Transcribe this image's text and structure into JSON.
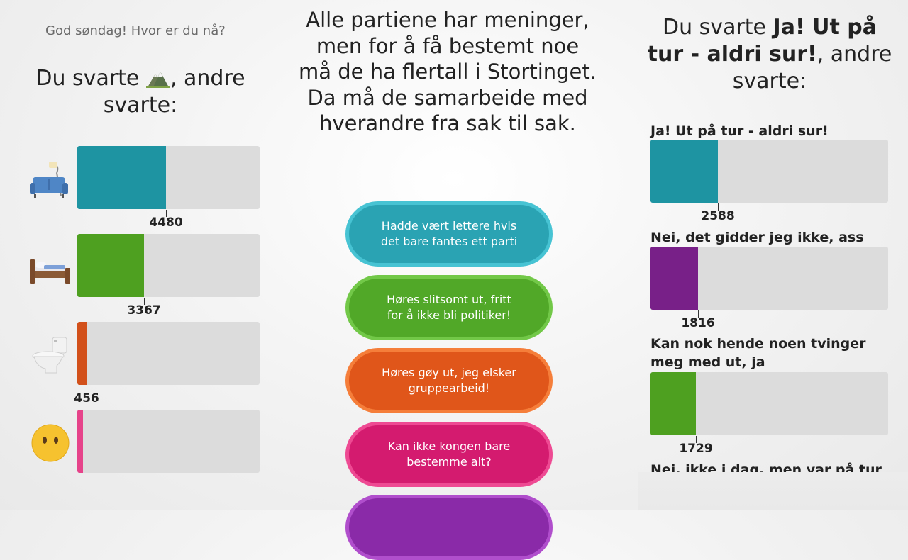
{
  "greeting": "God søndag! Hvor er du nå?",
  "left_heading": {
    "prefix": "Du svarte",
    "suffix": ", andre svarte:",
    "answer_icon": "mountain-icon"
  },
  "left_results": [
    {
      "icon": "couch-lamp-icon",
      "value": 4480,
      "fraction": 0.485,
      "color": "#1e94a2",
      "label": "4480"
    },
    {
      "icon": "bed-icon",
      "value": 3367,
      "fraction": 0.365,
      "color": "#4ea020",
      "label": "3367"
    },
    {
      "icon": "toilet-icon",
      "value": 456,
      "fraction": 0.05,
      "color": "#d2501a",
      "label": "456"
    },
    {
      "icon": "neutral-face-icon",
      "value": null,
      "fraction": 0.03,
      "color": "#e6438a",
      "label": ""
    }
  ],
  "question": "Alle partiene har meninger, men for å få bestemt noe må de ha flertall i Stortinget. Da må de samarbeide med hverandre fra sak til sak.",
  "options": [
    {
      "label": "Hadde vært lettere hvis det bare fantes ett parti",
      "color": "#2aa3b3",
      "border": "#47c3d3"
    },
    {
      "label": "Høres slitsomt ut, fritt for å ikke bli politiker!",
      "color": "#51a828",
      "border": "#72c848"
    },
    {
      "label": "Høres gøy ut, jeg elsker gruppearbeid!",
      "color": "#e0561a",
      "border": "#f57e3a"
    },
    {
      "label": "Kan ikke kongen bare bestemme alt?",
      "color": "#d41b6f",
      "border": "#ee4a93"
    },
    {
      "label": "",
      "color": "#8a2aa8",
      "border": "#b04ecc"
    }
  ],
  "right_heading": {
    "prefix": "Du svarte ",
    "answer": "Ja! Ut på tur - aldri sur!",
    "suffix": ", andre svarte:"
  },
  "right_results": [
    {
      "label": "Ja! Ut på tur - aldri sur!",
      "value": 2588,
      "fraction": 0.285,
      "color": "#1e94a2",
      "count": "2588"
    },
    {
      "label": "Nei, det gidder jeg ikke, ass",
      "value": 1816,
      "fraction": 0.2,
      "color": "#782088",
      "count": "1816"
    },
    {
      "label": "Kan nok hende noen tvinger meg med ut, ja",
      "value": 1729,
      "fraction": 0.19,
      "color": "#4ea020",
      "count": "1729"
    },
    {
      "label": "Nei, ikke i dag, men var på tur i",
      "value": null,
      "fraction": 0,
      "color": "#cccccc",
      "count": ""
    }
  ]
}
